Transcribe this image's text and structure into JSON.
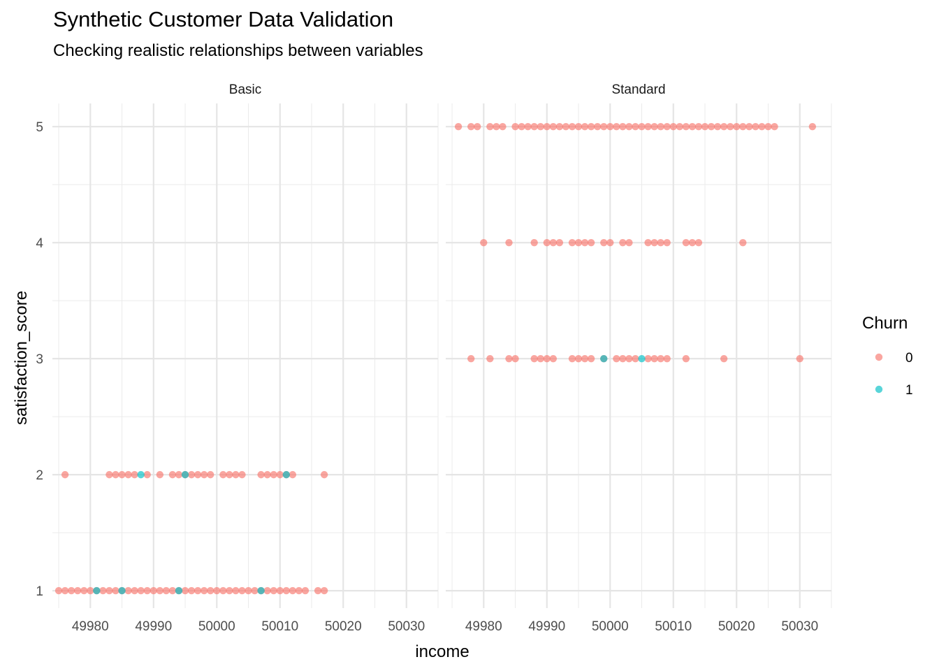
{
  "chart_data": {
    "type": "scatter",
    "title": "Synthetic Customer Data Validation",
    "subtitle": "Checking realistic relationships between variables",
    "xlabel": "income",
    "ylabel": "satisfaction_score",
    "xlim": [
      49974,
      50035
    ],
    "ylim": [
      0.85,
      5.2
    ],
    "x_ticks": [
      49980,
      49990,
      50000,
      50010,
      50020,
      50030
    ],
    "y_ticks": [
      1,
      2,
      3,
      4,
      5
    ],
    "grid": true,
    "legend": {
      "title": "Churn",
      "position": "right",
      "entries": [
        {
          "label": "0",
          "color": "#F8766D"
        },
        {
          "label": "1",
          "color": "#00BFC4"
        }
      ]
    },
    "facets": [
      {
        "name": "Basic",
        "series": [
          {
            "name": "0",
            "points": [
              [
                49975,
                1
              ],
              [
                49976,
                1
              ],
              [
                49977,
                1
              ],
              [
                49978,
                1
              ],
              [
                49979,
                1
              ],
              [
                49980,
                1
              ],
              [
                49981,
                1
              ],
              [
                49982,
                1
              ],
              [
                49983,
                1
              ],
              [
                49984,
                1
              ],
              [
                49985,
                1
              ],
              [
                49986,
                1
              ],
              [
                49987,
                1
              ],
              [
                49988,
                1
              ],
              [
                49989,
                1
              ],
              [
                49990,
                1
              ],
              [
                49991,
                1
              ],
              [
                49992,
                1
              ],
              [
                49993,
                1
              ],
              [
                49994,
                1
              ],
              [
                49995,
                1
              ],
              [
                49996,
                1
              ],
              [
                49997,
                1
              ],
              [
                49998,
                1
              ],
              [
                49999,
                1
              ],
              [
                50000,
                1
              ],
              [
                50001,
                1
              ],
              [
                50002,
                1
              ],
              [
                50003,
                1
              ],
              [
                50004,
                1
              ],
              [
                50005,
                1
              ],
              [
                50006,
                1
              ],
              [
                50007,
                1
              ],
              [
                50008,
                1
              ],
              [
                50009,
                1
              ],
              [
                50010,
                1
              ],
              [
                50011,
                1
              ],
              [
                50012,
                1
              ],
              [
                50013,
                1
              ],
              [
                50014,
                1
              ],
              [
                50016,
                1
              ],
              [
                50017,
                1
              ],
              [
                49976,
                2
              ],
              [
                49983,
                2
              ],
              [
                49984,
                2
              ],
              [
                49985,
                2
              ],
              [
                49986,
                2
              ],
              [
                49987,
                2
              ],
              [
                49989,
                2
              ],
              [
                49991,
                2
              ],
              [
                49993,
                2
              ],
              [
                49994,
                2
              ],
              [
                49995,
                2
              ],
              [
                49996,
                2
              ],
              [
                49997,
                2
              ],
              [
                49998,
                2
              ],
              [
                49999,
                2
              ],
              [
                50001,
                2
              ],
              [
                50002,
                2
              ],
              [
                50003,
                2
              ],
              [
                50004,
                2
              ],
              [
                50007,
                2
              ],
              [
                50008,
                2
              ],
              [
                50009,
                2
              ],
              [
                50010,
                2
              ],
              [
                50011,
                2
              ],
              [
                50012,
                2
              ],
              [
                50017,
                2
              ]
            ]
          },
          {
            "name": "1",
            "points": [
              [
                49981,
                1
              ],
              [
                49985,
                1
              ],
              [
                49994,
                1
              ],
              [
                50007,
                1
              ],
              [
                49988,
                2
              ],
              [
                49995,
                2
              ],
              [
                50011,
                2
              ]
            ]
          }
        ]
      },
      {
        "name": "Standard",
        "series": [
          {
            "name": "0",
            "points": [
              [
                49978,
                3
              ],
              [
                49981,
                3
              ],
              [
                49984,
                3
              ],
              [
                49985,
                3
              ],
              [
                49988,
                3
              ],
              [
                49989,
                3
              ],
              [
                49990,
                3
              ],
              [
                49991,
                3
              ],
              [
                49994,
                3
              ],
              [
                49995,
                3
              ],
              [
                49996,
                3
              ],
              [
                49997,
                3
              ],
              [
                49999,
                3
              ],
              [
                50001,
                3
              ],
              [
                50002,
                3
              ],
              [
                50003,
                3
              ],
              [
                50004,
                3
              ],
              [
                50006,
                3
              ],
              [
                50007,
                3
              ],
              [
                50008,
                3
              ],
              [
                50009,
                3
              ],
              [
                50012,
                3
              ],
              [
                50018,
                3
              ],
              [
                50030,
                3
              ],
              [
                49980,
                4
              ],
              [
                49984,
                4
              ],
              [
                49988,
                4
              ],
              [
                49990,
                4
              ],
              [
                49991,
                4
              ],
              [
                49992,
                4
              ],
              [
                49994,
                4
              ],
              [
                49995,
                4
              ],
              [
                49996,
                4
              ],
              [
                49997,
                4
              ],
              [
                49999,
                4
              ],
              [
                50000,
                4
              ],
              [
                50002,
                4
              ],
              [
                50003,
                4
              ],
              [
                50006,
                4
              ],
              [
                50007,
                4
              ],
              [
                50008,
                4
              ],
              [
                50009,
                4
              ],
              [
                50012,
                4
              ],
              [
                50013,
                4
              ],
              [
                50014,
                4
              ],
              [
                50021,
                4
              ],
              [
                49976,
                5
              ],
              [
                49978,
                5
              ],
              [
                49979,
                5
              ],
              [
                49981,
                5
              ],
              [
                49982,
                5
              ],
              [
                49983,
                5
              ],
              [
                49985,
                5
              ],
              [
                49986,
                5
              ],
              [
                49987,
                5
              ],
              [
                49988,
                5
              ],
              [
                49989,
                5
              ],
              [
                49990,
                5
              ],
              [
                49991,
                5
              ],
              [
                49992,
                5
              ],
              [
                49993,
                5
              ],
              [
                49994,
                5
              ],
              [
                49995,
                5
              ],
              [
                49996,
                5
              ],
              [
                49997,
                5
              ],
              [
                49998,
                5
              ],
              [
                49999,
                5
              ],
              [
                50000,
                5
              ],
              [
                50001,
                5
              ],
              [
                50002,
                5
              ],
              [
                50003,
                5
              ],
              [
                50004,
                5
              ],
              [
                50005,
                5
              ],
              [
                50006,
                5
              ],
              [
                50007,
                5
              ],
              [
                50008,
                5
              ],
              [
                50009,
                5
              ],
              [
                50010,
                5
              ],
              [
                50011,
                5
              ],
              [
                50012,
                5
              ],
              [
                50013,
                5
              ],
              [
                50014,
                5
              ],
              [
                50015,
                5
              ],
              [
                50016,
                5
              ],
              [
                50017,
                5
              ],
              [
                50018,
                5
              ],
              [
                50019,
                5
              ],
              [
                50020,
                5
              ],
              [
                50021,
                5
              ],
              [
                50022,
                5
              ],
              [
                50023,
                5
              ],
              [
                50024,
                5
              ],
              [
                50025,
                5
              ],
              [
                50026,
                5
              ],
              [
                50032,
                5
              ]
            ]
          },
          {
            "name": "1",
            "points": [
              [
                49999,
                3
              ],
              [
                50005,
                3
              ]
            ]
          }
        ]
      }
    ]
  }
}
